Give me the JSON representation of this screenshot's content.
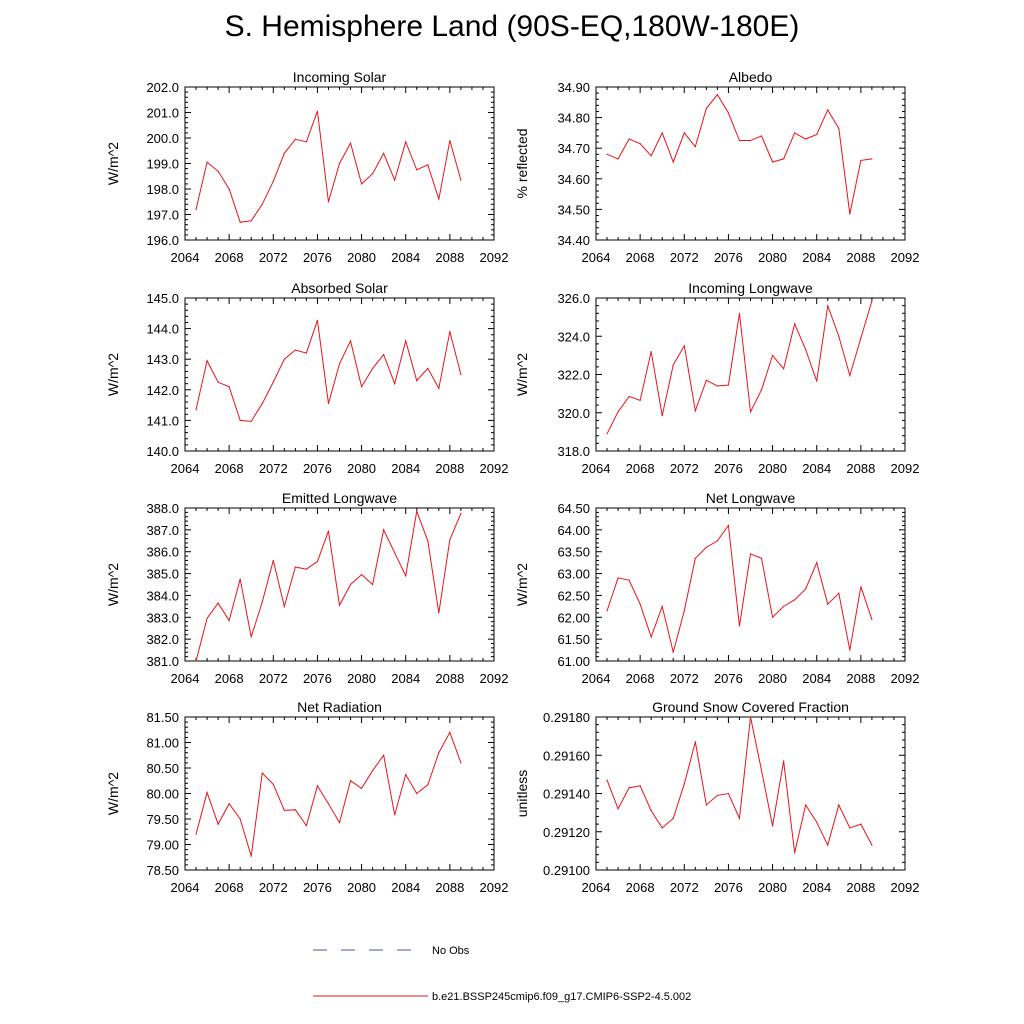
{
  "title": "S. Hemisphere Land (90S-EQ,180W-180E)",
  "colors": {
    "model": "#e8141c",
    "obs": "#4a5aa8",
    "axis": "#000000"
  },
  "legend": {
    "obs_label": "No Obs",
    "model_label": "b.e21.BSSP245cmip6.f09_g17.CMIP6-SSP2-4.5.002"
  },
  "chart_data": [
    {
      "type": "line",
      "title": "Incoming Solar",
      "xlabel": "",
      "ylabel": "W/m^2",
      "xlim": [
        2064,
        2092
      ],
      "ylim": [
        196.0,
        202.0
      ],
      "xticks": [
        "2064",
        "2068",
        "2072",
        "2076",
        "2080",
        "2084",
        "2088",
        "2092"
      ],
      "yticks": [
        "196.0",
        "197.0",
        "198.0",
        "199.0",
        "200.0",
        "201.0",
        "202.0"
      ],
      "x": [
        2065,
        2066,
        2067,
        2068,
        2069,
        2070,
        2071,
        2072,
        2073,
        2074,
        2075,
        2076,
        2077,
        2078,
        2079,
        2080,
        2081,
        2082,
        2083,
        2084,
        2085,
        2086,
        2087,
        2088,
        2089
      ],
      "values": [
        197.2,
        199.05,
        198.7,
        198.0,
        196.7,
        196.75,
        197.4,
        198.3,
        199.4,
        199.95,
        199.85,
        201.05,
        197.5,
        199.0,
        199.8,
        198.2,
        198.6,
        199.4,
        198.35,
        199.85,
        198.75,
        198.95,
        197.6,
        199.9,
        198.35
      ]
    },
    {
      "type": "line",
      "title": "Albedo",
      "xlabel": "",
      "ylabel": "% reflected",
      "xlim": [
        2064,
        2092
      ],
      "ylim": [
        34.4,
        34.9
      ],
      "xticks": [
        "2064",
        "2068",
        "2072",
        "2076",
        "2080",
        "2084",
        "2088",
        "2092"
      ],
      "yticks": [
        "34.40",
        "34.50",
        "34.60",
        "34.70",
        "34.80",
        "34.90"
      ],
      "x": [
        2065,
        2066,
        2067,
        2068,
        2069,
        2070,
        2071,
        2072,
        2073,
        2074,
        2075,
        2076,
        2077,
        2078,
        2079,
        2080,
        2081,
        2082,
        2083,
        2084,
        2085,
        2086,
        2087,
        2088,
        2089
      ],
      "values": [
        34.68,
        34.665,
        34.73,
        34.715,
        34.675,
        34.75,
        34.655,
        34.75,
        34.705,
        34.83,
        34.875,
        34.815,
        34.725,
        34.725,
        34.74,
        34.655,
        34.665,
        34.75,
        34.73,
        34.745,
        34.825,
        34.765,
        34.485,
        34.66,
        34.665
      ]
    },
    {
      "type": "line",
      "title": "Absorbed Solar",
      "xlabel": "",
      "ylabel": "W/m^2",
      "xlim": [
        2064,
        2092
      ],
      "ylim": [
        140.0,
        145.0
      ],
      "xticks": [
        "2064",
        "2068",
        "2072",
        "2076",
        "2080",
        "2084",
        "2088",
        "2092"
      ],
      "yticks": [
        "140.0",
        "141.0",
        "142.0",
        "143.0",
        "144.0",
        "145.0"
      ],
      "x": [
        2065,
        2066,
        2067,
        2068,
        2069,
        2070,
        2071,
        2072,
        2073,
        2074,
        2075,
        2076,
        2077,
        2078,
        2079,
        2080,
        2081,
        2082,
        2083,
        2084,
        2085,
        2086,
        2087,
        2088,
        2089
      ],
      "values": [
        141.35,
        142.95,
        142.25,
        142.1,
        141.0,
        140.97,
        141.55,
        142.25,
        143.0,
        143.3,
        143.2,
        144.27,
        141.55,
        142.85,
        143.6,
        142.1,
        142.7,
        143.15,
        142.2,
        143.6,
        142.3,
        142.7,
        142.05,
        143.9,
        142.5
      ]
    },
    {
      "type": "line",
      "title": "Incoming Longwave",
      "xlabel": "",
      "ylabel": "W/m^2",
      "xlim": [
        2064,
        2092
      ],
      "ylim": [
        318.0,
        326.0
      ],
      "xticks": [
        "2064",
        "2068",
        "2072",
        "2076",
        "2080",
        "2084",
        "2088",
        "2092"
      ],
      "yticks": [
        "318.0",
        "320.0",
        "322.0",
        "324.0",
        "326.0"
      ],
      "x": [
        2065,
        2066,
        2067,
        2068,
        2069,
        2070,
        2071,
        2072,
        2073,
        2074,
        2075,
        2076,
        2077,
        2078,
        2079,
        2080,
        2081,
        2082,
        2083,
        2084,
        2085,
        2086,
        2087,
        2088,
        2089
      ],
      "values": [
        318.9,
        320.05,
        320.85,
        320.65,
        323.2,
        319.85,
        322.5,
        323.5,
        320.1,
        321.7,
        321.4,
        321.45,
        325.2,
        320.05,
        321.2,
        323.0,
        322.3,
        324.65,
        323.3,
        321.65,
        325.6,
        324.0,
        321.95,
        323.9,
        325.85
      ]
    },
    {
      "type": "line",
      "title": "Emitted Longwave",
      "xlabel": "",
      "ylabel": "W/m^2",
      "xlim": [
        2064,
        2092
      ],
      "ylim": [
        381.0,
        388.0
      ],
      "xticks": [
        "2064",
        "2068",
        "2072",
        "2076",
        "2080",
        "2084",
        "2088",
        "2092"
      ],
      "yticks": [
        "381.0",
        "382.0",
        "383.0",
        "384.0",
        "385.0",
        "386.0",
        "387.0",
        "388.0"
      ],
      "x": [
        2065,
        2066,
        2067,
        2068,
        2069,
        2070,
        2071,
        2072,
        2073,
        2074,
        2075,
        2076,
        2077,
        2078,
        2079,
        2080,
        2081,
        2082,
        2083,
        2084,
        2085,
        2086,
        2087,
        2088,
        2089
      ],
      "values": [
        381.0,
        382.95,
        383.65,
        382.85,
        384.75,
        382.1,
        383.7,
        385.6,
        383.5,
        385.3,
        385.2,
        385.55,
        386.95,
        383.55,
        384.5,
        384.95,
        384.5,
        387.0,
        385.95,
        384.9,
        387.85,
        386.5,
        383.2,
        386.55,
        387.75
      ]
    },
    {
      "type": "line",
      "title": "Net Longwave",
      "xlabel": "",
      "ylabel": "W/m^2",
      "xlim": [
        2064,
        2092
      ],
      "ylim": [
        61.0,
        64.5
      ],
      "xticks": [
        "2064",
        "2068",
        "2072",
        "2076",
        "2080",
        "2084",
        "2088",
        "2092"
      ],
      "yticks": [
        "61.00",
        "61.50",
        "62.00",
        "62.50",
        "63.00",
        "63.50",
        "64.00",
        "64.50"
      ],
      "x": [
        2065,
        2066,
        2067,
        2068,
        2069,
        2070,
        2071,
        2072,
        2073,
        2074,
        2075,
        2076,
        2077,
        2078,
        2079,
        2080,
        2081,
        2082,
        2083,
        2084,
        2085,
        2086,
        2087,
        2088,
        2089
      ],
      "values": [
        62.15,
        62.9,
        62.85,
        62.3,
        61.55,
        62.25,
        61.2,
        62.15,
        63.35,
        63.6,
        63.75,
        64.1,
        61.8,
        63.45,
        63.35,
        62.0,
        62.25,
        62.4,
        62.65,
        63.25,
        62.3,
        62.55,
        61.25,
        62.7,
        61.95
      ]
    },
    {
      "type": "line",
      "title": "Net Radiation",
      "xlabel": "",
      "ylabel": "W/m^2",
      "xlim": [
        2064,
        2092
      ],
      "ylim": [
        78.5,
        81.5
      ],
      "xticks": [
        "2064",
        "2068",
        "2072",
        "2076",
        "2080",
        "2084",
        "2088",
        "2092"
      ],
      "yticks": [
        "78.50",
        "79.00",
        "79.50",
        "80.00",
        "80.50",
        "81.00",
        "81.50"
      ],
      "x": [
        2065,
        2066,
        2067,
        2068,
        2069,
        2070,
        2071,
        2072,
        2073,
        2074,
        2075,
        2076,
        2077,
        2078,
        2079,
        2080,
        2081,
        2082,
        2083,
        2084,
        2085,
        2086,
        2087,
        2088,
        2089
      ],
      "values": [
        79.2,
        80.02,
        79.4,
        79.8,
        79.5,
        78.77,
        80.4,
        80.18,
        79.67,
        79.68,
        79.37,
        80.15,
        79.8,
        79.43,
        80.25,
        80.1,
        80.45,
        80.75,
        79.58,
        80.37,
        80.0,
        80.17,
        80.8,
        81.2,
        80.6
      ]
    },
    {
      "type": "line",
      "title": "Ground Snow Covered Fraction",
      "xlabel": "",
      "ylabel": "unitless",
      "xlim": [
        2064,
        2092
      ],
      "ylim": [
        0.291,
        0.2918
      ],
      "xticks": [
        "2064",
        "2068",
        "2072",
        "2076",
        "2080",
        "2084",
        "2088",
        "2092"
      ],
      "yticks": [
        "0.29100",
        "0.29120",
        "0.29140",
        "0.29160",
        "0.29180"
      ],
      "x": [
        2065,
        2066,
        2067,
        2068,
        2069,
        2070,
        2071,
        2072,
        2073,
        2074,
        2075,
        2076,
        2077,
        2078,
        2079,
        2080,
        2081,
        2082,
        2083,
        2084,
        2085,
        2086,
        2087,
        2088,
        2089
      ],
      "values": [
        0.29147,
        0.29132,
        0.29143,
        0.29144,
        0.29131,
        0.29122,
        0.29127,
        0.29145,
        0.29167,
        0.29134,
        0.29139,
        0.2914,
        0.29127,
        0.2918,
        0.29152,
        0.29123,
        0.29157,
        0.29109,
        0.29134,
        0.29125,
        0.29113,
        0.29134,
        0.29122,
        0.29124,
        0.29113
      ]
    }
  ]
}
